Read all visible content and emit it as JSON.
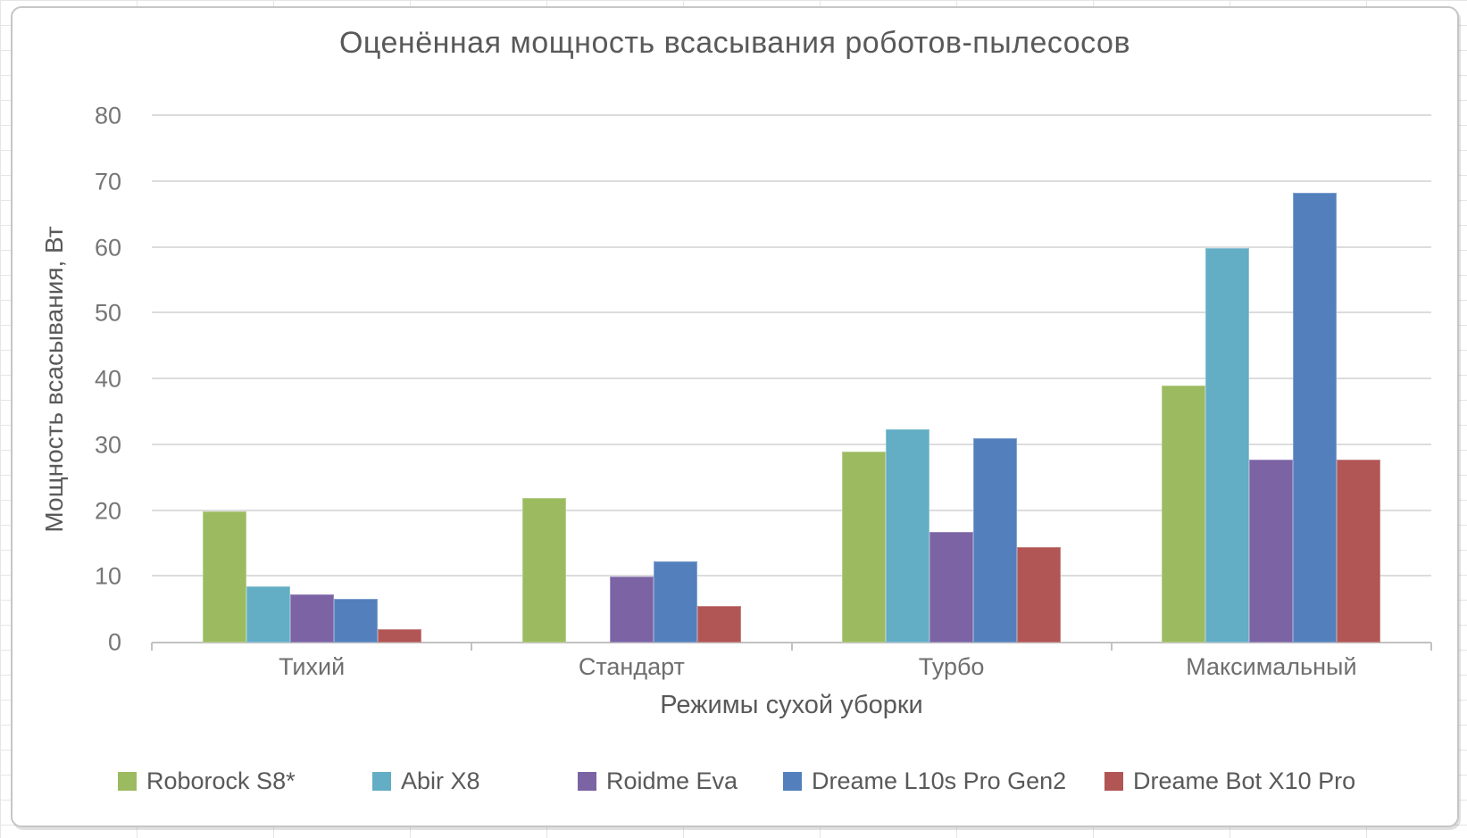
{
  "chart_data": {
    "type": "bar",
    "title": "Оценённая мощность всасывания роботов-пылесосов",
    "xlabel": "Режимы сухой уборки",
    "ylabel": "Мощность всасывания, Вт",
    "ylim": [
      0,
      80
    ],
    "ytick_step": 10,
    "ytick_labels": [
      "0",
      "10",
      "20",
      "30",
      "40",
      "50",
      "60",
      "70",
      "80"
    ],
    "grid": true,
    "legend_position": "bottom",
    "categories": [
      "Тихий",
      "Стандарт",
      "Турбо",
      "Максимальный"
    ],
    "series": [
      {
        "name": "Roborock S8*",
        "color": "#9cbb61",
        "values": [
          20,
          22,
          29,
          39
        ]
      },
      {
        "name": "Abir X8",
        "color": "#63adc5",
        "values": [
          8.6,
          0,
          32.4,
          60
        ]
      },
      {
        "name": "Roidme Eva",
        "color": "#7b63a4",
        "values": [
          7.3,
          10.1,
          16.8,
          27.8
        ]
      },
      {
        "name": "Dreame L10s Pro Gen2",
        "color": "#5380bd",
        "values": [
          6.6,
          12.4,
          31,
          68.3
        ]
      },
      {
        "name": "Dreame Bot X10 Pro",
        "color": "#b15655",
        "values": [
          2.1,
          5.6,
          14.5,
          27.8
        ]
      }
    ],
    "colors": {
      "gridline": "#dcdcdc",
      "axis_line": "#c2c2c2",
      "title_text": "#595959",
      "tick_text": "#767676"
    }
  }
}
